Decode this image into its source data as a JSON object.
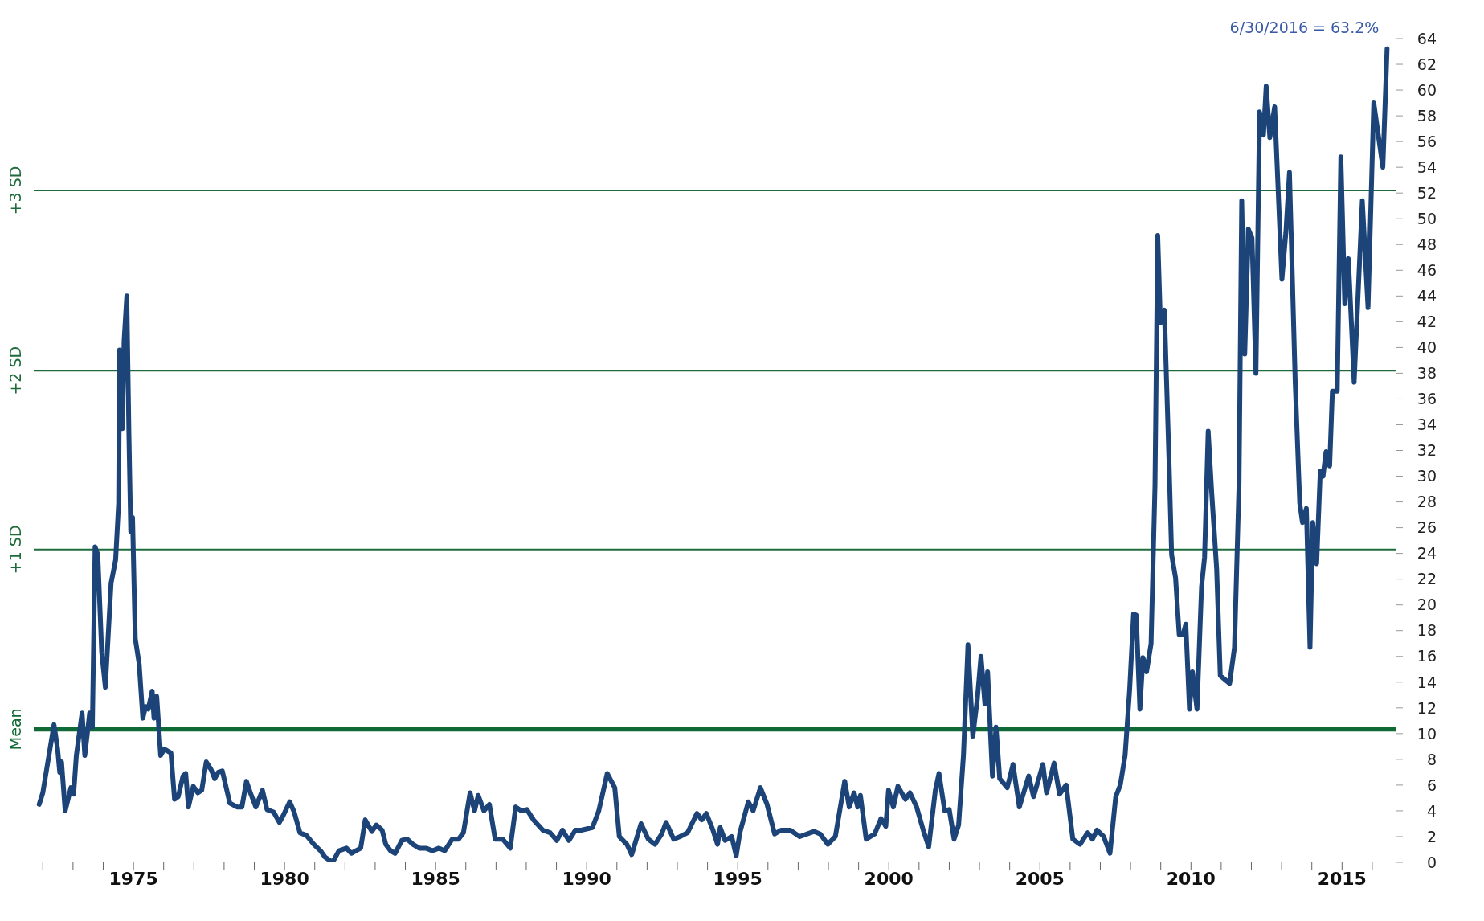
{
  "chart_data": {
    "type": "line",
    "grid": false,
    "marker": "none",
    "line_style": "solid",
    "annotations": [
      {
        "text": "6/30/2016 = 63.2%",
        "x": 2016.49,
        "y": 63.2
      }
    ],
    "xlim": [
      1971.7,
      2016.8
    ],
    "xticks": [
      {
        "value": 1972,
        "label": null
      },
      {
        "value": 1973,
        "label": null
      },
      {
        "value": 1974,
        "label": null
      },
      {
        "value": 1975,
        "label": "1975"
      },
      {
        "value": 1976,
        "label": null
      },
      {
        "value": 1977,
        "label": null
      },
      {
        "value": 1978,
        "label": null
      },
      {
        "value": 1979,
        "label": null
      },
      {
        "value": 1980,
        "label": "1980"
      },
      {
        "value": 1981,
        "label": null
      },
      {
        "value": 1982,
        "label": null
      },
      {
        "value": 1983,
        "label": null
      },
      {
        "value": 1984,
        "label": null
      },
      {
        "value": 1985,
        "label": "1985"
      },
      {
        "value": 1986,
        "label": null
      },
      {
        "value": 1987,
        "label": null
      },
      {
        "value": 1988,
        "label": null
      },
      {
        "value": 1989,
        "label": null
      },
      {
        "value": 1990,
        "label": "1990"
      },
      {
        "value": 1991,
        "label": null
      },
      {
        "value": 1992,
        "label": null
      },
      {
        "value": 1993,
        "label": null
      },
      {
        "value": 1994,
        "label": null
      },
      {
        "value": 1995,
        "label": "1995"
      },
      {
        "value": 1996,
        "label": null
      },
      {
        "value": 1997,
        "label": null
      },
      {
        "value": 1998,
        "label": null
      },
      {
        "value": 1999,
        "label": null
      },
      {
        "value": 2000,
        "label": "2000"
      },
      {
        "value": 2001,
        "label": null
      },
      {
        "value": 2002,
        "label": null
      },
      {
        "value": 2003,
        "label": null
      },
      {
        "value": 2004,
        "label": null
      },
      {
        "value": 2005,
        "label": "2005"
      },
      {
        "value": 2006,
        "label": null
      },
      {
        "value": 2007,
        "label": null
      },
      {
        "value": 2008,
        "label": null
      },
      {
        "value": 2009,
        "label": null
      },
      {
        "value": 2010,
        "label": "2010"
      },
      {
        "value": 2011,
        "label": null
      },
      {
        "value": 2012,
        "label": null
      },
      {
        "value": 2013,
        "label": null
      },
      {
        "value": 2014,
        "label": null
      },
      {
        "value": 2015,
        "label": "2015"
      },
      {
        "value": 2016,
        "label": null
      }
    ],
    "ylim": [
      0,
      64
    ],
    "yticks": [
      0,
      2,
      4,
      6,
      8,
      10,
      12,
      14,
      16,
      18,
      20,
      22,
      24,
      26,
      28,
      30,
      32,
      34,
      36,
      38,
      40,
      42,
      44,
      46,
      48,
      50,
      52,
      54,
      56,
      58,
      60,
      62,
      64
    ],
    "ref_lines": [
      {
        "axis": "y",
        "value": 52.2,
        "label": "+3 SD",
        "color": "#1e6b3c"
      },
      {
        "axis": "y",
        "value": 38.2,
        "label": "+2 SD",
        "color": "#1e6b3c"
      },
      {
        "axis": "y",
        "value": 24.3,
        "label": "+1 SD",
        "color": "#1e6b3c"
      },
      {
        "axis": "y",
        "value": 10.35,
        "label": "Mean",
        "color": "#0f6a35"
      }
    ],
    "series": [
      {
        "color": "#1c4479",
        "x": [
          1971.88,
          1972.0,
          1972.37,
          1972.49,
          1972.56,
          1972.62,
          1972.74,
          1972.93,
          1973.02,
          1973.11,
          1973.3,
          1973.39,
          1973.55,
          1973.64,
          1973.73,
          1973.82,
          1973.95,
          1974.07,
          1974.26,
          1974.41,
          1974.51,
          1974.54,
          1974.63,
          1974.69,
          1974.78,
          1974.85,
          1974.91,
          1974.97,
          1975.06,
          1975.19,
          1975.31,
          1975.4,
          1975.49,
          1975.62,
          1975.68,
          1975.77,
          1975.9,
          1976.02,
          1976.24,
          1976.36,
          1976.48,
          1976.64,
          1976.73,
          1976.82,
          1976.98,
          1977.13,
          1977.26,
          1977.41,
          1977.57,
          1977.69,
          1977.81,
          1977.94,
          1978.19,
          1978.43,
          1978.59,
          1978.74,
          1978.87,
          1979.05,
          1979.27,
          1979.42,
          1979.64,
          1979.83,
          1979.95,
          1980.17,
          1980.32,
          1980.51,
          1980.72,
          1980.97,
          1981.19,
          1981.34,
          1981.59,
          1981.8,
          1982.05,
          1982.21,
          1982.36,
          1982.52,
          1982.67,
          1982.89,
          1983.04,
          1983.23,
          1983.35,
          1983.51,
          1983.66,
          1983.88,
          1984.06,
          1984.25,
          1984.46,
          1984.68,
          1984.9,
          1985.11,
          1985.3,
          1985.55,
          1985.76,
          1985.92,
          1986.14,
          1986.29,
          1986.41,
          1986.6,
          1986.78,
          1986.97,
          1987.22,
          1987.47,
          1987.65,
          1987.84,
          1988.02,
          1988.24,
          1988.55,
          1988.79,
          1989.01,
          1989.2,
          1989.41,
          1989.63,
          1989.82,
          1990.19,
          1990.4,
          1990.68,
          1990.93,
          1991.08,
          1991.33,
          1991.49,
          1991.8,
          1992.04,
          1992.26,
          1992.48,
          1992.63,
          1992.88,
          1993.09,
          1993.34,
          1993.65,
          1993.81,
          1993.96,
          1994.18,
          1994.33,
          1994.42,
          1994.58,
          1994.8,
          1994.95,
          1995.07,
          1995.35,
          1995.51,
          1995.75,
          1995.97,
          1996.22,
          1996.43,
          1996.74,
          1997.05,
          1997.52,
          1997.73,
          1997.98,
          1998.23,
          1998.54,
          1998.69,
          1998.85,
          1998.97,
          1999.06,
          1999.25,
          1999.53,
          1999.74,
          1999.9,
          1999.99,
          2000.15,
          2000.3,
          2000.55,
          2000.7,
          2000.92,
          2001.14,
          2001.32,
          2001.54,
          2001.66,
          2001.85,
          2002.0,
          2002.16,
          2002.31,
          2002.47,
          2002.62,
          2002.78,
          2002.93,
          2003.05,
          2003.18,
          2003.27,
          2003.43,
          2003.55,
          2003.67,
          2003.92,
          2004.11,
          2004.32,
          2004.63,
          2004.79,
          2005.1,
          2005.22,
          2005.47,
          2005.65,
          2005.87,
          2006.09,
          2006.33,
          2006.58,
          2006.74,
          2006.89,
          2007.11,
          2007.32,
          2007.51,
          2007.66,
          2007.82,
          2007.97,
          2008.1,
          2008.19,
          2008.31,
          2008.41,
          2008.53,
          2008.68,
          2008.81,
          2008.9,
          2008.99,
          2009.12,
          2009.27,
          2009.36,
          2009.49,
          2009.61,
          2009.74,
          2009.83,
          2009.95,
          2010.05,
          2010.2,
          2010.35,
          2010.45,
          2010.57,
          2010.69,
          2010.85,
          2010.97,
          2011.28,
          2011.44,
          2011.59,
          2011.68,
          2011.78,
          2011.9,
          2012.02,
          2012.15,
          2012.27,
          2012.4,
          2012.49,
          2012.61,
          2012.77,
          2013.01,
          2013.14,
          2013.26,
          2013.45,
          2013.6,
          2013.69,
          2013.82,
          2013.94,
          2014.03,
          2014.16,
          2014.28,
          2014.37,
          2014.47,
          2014.59,
          2014.68,
          2014.84,
          2014.96,
          2015.09,
          2015.21,
          2015.4,
          2015.67,
          2015.86,
          2016.05,
          2016.35,
          2016.49
        ],
        "values": [
          4.5,
          5.4,
          10.7,
          8.8,
          7.0,
          7.8,
          4.0,
          5.8,
          5.3,
          8.3,
          11.6,
          8.3,
          11.6,
          10.5,
          24.5,
          23.9,
          16.3,
          13.6,
          21.7,
          23.5,
          27.9,
          39.8,
          33.7,
          40.5,
          44.0,
          33.3,
          25.7,
          26.8,
          17.4,
          15.4,
          11.2,
          12.1,
          11.9,
          13.3,
          11.2,
          12.9,
          8.3,
          8.8,
          8.5,
          4.9,
          5.1,
          6.7,
          6.9,
          4.3,
          5.9,
          5.4,
          5.6,
          7.8,
          7.2,
          6.5,
          7.0,
          7.1,
          4.6,
          4.3,
          4.3,
          6.3,
          5.4,
          4.3,
          5.6,
          4.1,
          3.9,
          3.1,
          3.6,
          4.7,
          3.9,
          2.3,
          2.1,
          1.4,
          0.9,
          0.4,
          0.0,
          0.9,
          1.1,
          0.7,
          0.9,
          1.1,
          3.3,
          2.4,
          2.9,
          2.5,
          1.4,
          0.9,
          0.7,
          1.7,
          1.8,
          1.4,
          1.1,
          1.1,
          0.9,
          1.1,
          0.9,
          1.8,
          1.8,
          2.3,
          5.4,
          4.0,
          5.2,
          4.0,
          4.5,
          1.8,
          1.8,
          1.1,
          4.3,
          4.0,
          4.1,
          3.3,
          2.5,
          2.3,
          1.7,
          2.5,
          1.7,
          2.5,
          2.5,
          2.7,
          4.0,
          6.9,
          5.8,
          2.0,
          1.4,
          0.6,
          3.0,
          1.8,
          1.4,
          2.2,
          3.1,
          1.8,
          2.0,
          2.3,
          3.8,
          3.3,
          3.8,
          2.5,
          1.4,
          2.7,
          1.7,
          2.0,
          0.5,
          2.3,
          4.7,
          4.0,
          5.8,
          4.5,
          2.2,
          2.5,
          2.5,
          2.0,
          2.4,
          2.2,
          1.4,
          2.0,
          6.3,
          4.3,
          5.4,
          4.3,
          5.2,
          1.8,
          2.2,
          3.4,
          2.8,
          5.6,
          4.3,
          5.9,
          4.9,
          5.4,
          4.3,
          2.5,
          1.2,
          5.6,
          6.9,
          4.0,
          4.1,
          1.8,
          2.9,
          8.3,
          16.9,
          9.8,
          12.7,
          16.0,
          12.3,
          14.8,
          6.7,
          10.5,
          6.5,
          5.8,
          7.6,
          4.3,
          6.7,
          5.1,
          7.6,
          5.4,
          7.7,
          5.3,
          6.0,
          1.8,
          1.4,
          2.3,
          1.8,
          2.5,
          2.0,
          0.7,
          5.1,
          6.0,
          8.3,
          13.4,
          19.3,
          19.2,
          11.9,
          15.9,
          14.8,
          17.0,
          29.3,
          48.7,
          41.9,
          42.9,
          31.5,
          23.9,
          22.1,
          17.7,
          17.7,
          18.5,
          11.9,
          14.8,
          11.9,
          21.4,
          23.7,
          33.5,
          28.6,
          22.8,
          14.5,
          13.9,
          16.7,
          29.3,
          51.4,
          39.5,
          49.2,
          48.5,
          38.0,
          58.3,
          56.5,
          60.3,
          56.3,
          58.7,
          45.3,
          48.9,
          53.6,
          37.3,
          27.9,
          26.4,
          27.5,
          16.7,
          26.4,
          23.2,
          30.4,
          30.0,
          31.9,
          30.8,
          36.6,
          36.6,
          54.8,
          43.4,
          46.9,
          37.3,
          51.4,
          43.1,
          59.0,
          54.0,
          63.2
        ]
      }
    ]
  }
}
